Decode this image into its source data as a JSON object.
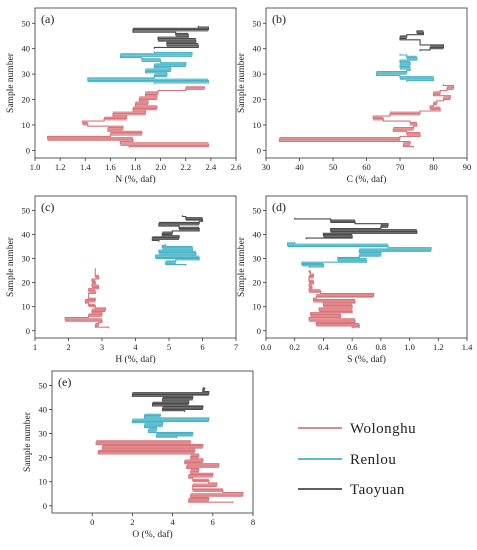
{
  "legend": {
    "items": [
      {
        "label": "Wolonghu",
        "color": "#d9757a"
      },
      {
        "label": "Renlou",
        "color": "#45b3c6"
      },
      {
        "label": "Taoyuan",
        "color": "#4a4a4a"
      }
    ]
  },
  "chart_data": [
    {
      "type": "line",
      "panel_label": "(a)",
      "xlabel": "N (%, daf)",
      "ylabel": "Sample number",
      "xlim": [
        1.0,
        2.6
      ],
      "ylim": [
        -3,
        56
      ],
      "xticks": [
        "1.0",
        "1.2",
        "1.4",
        "1.6",
        "1.8",
        "2.0",
        "2.2",
        "2.4",
        "2.6"
      ],
      "yticks": [
        "0",
        "10",
        "20",
        "30",
        "40",
        "50"
      ],
      "series": [
        {
          "name": "Wolonghu",
          "x": [
            1.75,
            2.38,
            1.68,
            1.78,
            1.1,
            1.6,
            1.85,
            1.58,
            1.7,
            1.42,
            1.38,
            1.55,
            1.73,
            1.62,
            1.88,
            1.78,
            1.97,
            1.8,
            1.9,
            1.83,
            1.97,
            1.88,
            1.98,
            2.2,
            2.35
          ],
          "y": [
            1,
            2,
            3,
            4,
            5,
            6,
            7,
            8,
            9,
            10,
            11,
            12,
            13,
            14,
            15,
            16,
            17,
            18,
            19,
            20,
            21,
            22,
            23,
            24,
            25
          ]
        },
        {
          "name": "Renlou",
          "x": [
            1.95,
            2.38,
            1.42,
            1.95,
            2.05,
            1.88,
            2.08,
            1.95,
            2.2,
            2.0,
            1.85,
            1.68,
            2.25,
            1.95
          ],
          "y": [
            26,
            27,
            28,
            29,
            30,
            31,
            32,
            33,
            34,
            35,
            36,
            37,
            38,
            39
          ]
        },
        {
          "name": "Taoyuan",
          "x": [
            1.95,
            2.3,
            2.05,
            2.28,
            1.98,
            2.22,
            2.12,
            1.78,
            2.38,
            2.3
          ],
          "y": [
            40,
            41,
            42,
            43,
            44,
            45,
            46,
            47,
            48,
            49
          ]
        }
      ]
    },
    {
      "type": "line",
      "panel_label": "(b)",
      "xlabel": "C (%, daf)",
      "ylabel": "Sample number",
      "xlim": [
        30,
        90
      ],
      "ylim": [
        -3,
        56
      ],
      "xticks": [
        "30",
        "40",
        "50",
        "60",
        "70",
        "80",
        "90"
      ],
      "yticks": [
        "0",
        "10",
        "20",
        "30",
        "40",
        "50"
      ],
      "series": [
        {
          "name": "Wolonghu",
          "x": [
            74,
            71,
            73,
            34,
            70,
            76,
            72,
            68,
            74,
            75,
            73,
            65,
            62,
            67,
            76,
            82,
            79,
            80,
            81,
            83,
            85,
            80,
            82,
            84,
            86,
            83
          ],
          "y": [
            1,
            2,
            3,
            4,
            5,
            6,
            7,
            8,
            9,
            10,
            11,
            12,
            13,
            14,
            15,
            16,
            17,
            18,
            19,
            20,
            21,
            22,
            23,
            24,
            25,
            26
          ]
        },
        {
          "name": "Renlou",
          "x": [
            72,
            80,
            70,
            63,
            72,
            73,
            70,
            73,
            70,
            75,
            72,
            70
          ],
          "y": [
            27,
            28,
            29,
            30,
            31,
            32,
            33,
            34,
            35,
            36,
            37,
            38
          ]
        },
        {
          "name": "Taoyuan",
          "x": [
            76,
            79,
            83,
            76,
            76,
            70,
            72,
            77,
            75
          ],
          "y": [
            39,
            40,
            41,
            42,
            43,
            44,
            45,
            46,
            47
          ]
        }
      ]
    },
    {
      "type": "line",
      "panel_label": "(c)",
      "xlabel": "H (%, daf)",
      "ylabel": "Sample number",
      "xlim": [
        1,
        7
      ],
      "ylim": [
        -3,
        56
      ],
      "xticks": [
        "1",
        "2",
        "3",
        "4",
        "5",
        "6",
        "7"
      ],
      "yticks": [
        "0",
        "10",
        "20",
        "30",
        "40",
        "50"
      ],
      "series": [
        {
          "name": "Wolonghu",
          "x": [
            3.2,
            2.8,
            2.9,
            3.0,
            1.9,
            2.6,
            3.0,
            2.7,
            3.1,
            2.8,
            2.6,
            2.5,
            2.8,
            2.6,
            2.6,
            2.8,
            2.6,
            2.9,
            2.7,
            2.8,
            2.7,
            2.9,
            2.8,
            2.8,
            2.8,
            2.8
          ],
          "y": [
            1,
            2,
            3,
            4,
            5,
            6,
            7,
            8,
            9,
            10,
            11,
            12,
            13,
            14,
            15,
            16,
            17,
            18,
            19,
            20,
            21,
            22,
            23,
            24,
            25,
            26
          ]
        },
        {
          "name": "Renlou",
          "x": [
            5.5,
            4.9,
            5.2,
            5.9,
            4.6,
            5.8,
            4.7,
            5.7,
            4.8,
            4.9
          ],
          "y": [
            27,
            28,
            29,
            30,
            31,
            32,
            33,
            34,
            35,
            36
          ]
        },
        {
          "name": "Taoyuan",
          "x": [
            4.7,
            4.5,
            5.3,
            4.8,
            5.1,
            5.9,
            5.3,
            4.7,
            5.9,
            6.0,
            5.5,
            5.4
          ],
          "y": [
            37,
            38,
            39,
            40,
            41,
            42,
            43,
            44,
            45,
            46,
            47,
            48
          ]
        }
      ]
    },
    {
      "type": "line",
      "panel_label": "(d)",
      "xlabel": "S (%, daf)",
      "ylabel": "Sample number",
      "xlim": [
        0.0,
        1.4
      ],
      "ylim": [
        -3,
        56
      ],
      "xticks": [
        "0.0",
        "0.2",
        "0.4",
        "0.6",
        "0.8",
        "1.0",
        "1.2",
        "1.4"
      ],
      "yticks": [
        "0",
        "10",
        "20",
        "30",
        "40",
        "50"
      ],
      "series": [
        {
          "name": "Wolonghu",
          "x": [
            0.6,
            0.65,
            0.35,
            0.62,
            0.3,
            0.52,
            0.31,
            0.6,
            0.37,
            0.6,
            0.4,
            0.62,
            0.33,
            0.35,
            0.75,
            0.38,
            0.3,
            0.32,
            0.3,
            0.33,
            0.3,
            0.3,
            0.33,
            0.31,
            0.3
          ],
          "y": [
            1,
            2,
            3,
            4,
            5,
            6,
            7,
            8,
            9,
            10,
            11,
            12,
            13,
            14,
            15,
            16,
            17,
            18,
            19,
            20,
            21,
            22,
            23,
            24,
            25
          ]
        },
        {
          "name": "Renlou",
          "x": [
            0.3,
            0.4,
            0.25,
            0.7,
            0.5,
            0.65,
            0.8,
            0.65,
            1.15,
            0.85,
            0.15,
            0.2
          ],
          "y": [
            26,
            27,
            28,
            29,
            30,
            31,
            32,
            33,
            34,
            35,
            36,
            37
          ]
        },
        {
          "name": "Taoyuan",
          "x": [
            0.28,
            0.6,
            0.4,
            1.05,
            0.45,
            0.8,
            0.85,
            0.62,
            0.45,
            0.2
          ],
          "y": [
            38,
            39,
            40,
            41,
            42,
            43,
            44,
            45,
            46,
            47
          ]
        }
      ]
    },
    {
      "type": "line",
      "panel_label": "(e)",
      "xlabel": "O (%, daf)",
      "ylabel": "Sample number",
      "xlim": [
        -2,
        8
      ],
      "ylim": [
        -3,
        56
      ],
      "xticks": [
        "0",
        "2",
        "4",
        "6",
        "8"
      ],
      "yticks": [
        "0",
        "10",
        "20",
        "30",
        "40",
        "50"
      ],
      "series": [
        {
          "name": "Wolonghu",
          "x": [
            7.0,
            4.8,
            5.8,
            4.9,
            7.5,
            6.5,
            5.0,
            5.0,
            6.2,
            5.8,
            5.0,
            4.8,
            6.0,
            4.9,
            5.3,
            4.7,
            6.3,
            4.6,
            5.5,
            4.9,
            5.3,
            0.3,
            5.1,
            0.5,
            5.5,
            0.2,
            4.9
          ],
          "y": [
            1,
            2,
            3,
            4,
            5,
            6,
            7,
            8,
            9,
            10,
            11,
            12,
            13,
            14,
            15,
            16,
            17,
            18,
            19,
            20,
            21,
            22,
            23,
            24,
            25,
            26,
            27
          ]
        },
        {
          "name": "Renlou",
          "x": [
            4.2,
            3.2,
            5.0,
            2.8,
            3.2,
            2.6,
            3.5,
            2.0,
            5.8,
            2.6,
            3.4
          ],
          "y": [
            28,
            29,
            30,
            31,
            32,
            33,
            34,
            35,
            36,
            37,
            38
          ]
        },
        {
          "name": "Taoyuan",
          "x": [
            4.6,
            3.5,
            5.5,
            3.0,
            4.8,
            3.5,
            5.0,
            2.0,
            5.8,
            5.5,
            5.6
          ],
          "y": [
            39,
            40,
            41,
            42,
            43,
            44,
            45,
            46,
            47,
            48,
            49
          ]
        }
      ]
    }
  ]
}
